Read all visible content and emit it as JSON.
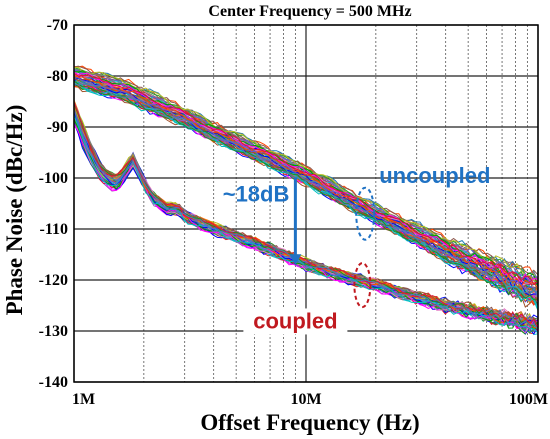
{
  "chart_data": {
    "type": "line",
    "title": "Center Frequency = 500 MHz",
    "xlabel": "Offset Frequency (Hz)",
    "ylabel": "Phase Noise (dBc/Hz)",
    "xscale": "log",
    "xlim": [
      1000000,
      100000000
    ],
    "ylim": [
      -140,
      -70
    ],
    "grid": true,
    "x_ticks": [
      {
        "value": 1000000,
        "label": "1M"
      },
      {
        "value": 10000000,
        "label": "10M"
      },
      {
        "value": 100000000,
        "label": "100M"
      }
    ],
    "y_ticks": [
      {
        "value": -70,
        "label": "-70"
      },
      {
        "value": -80,
        "label": "-80"
      },
      {
        "value": -90,
        "label": "-90"
      },
      {
        "value": -100,
        "label": "-100"
      },
      {
        "value": -110,
        "label": "-110"
      },
      {
        "value": -120,
        "label": "-120"
      },
      {
        "value": -130,
        "label": "-130"
      },
      {
        "value": -140,
        "label": "-140"
      }
    ],
    "series": [
      {
        "group": "uncoupled",
        "count": 60,
        "x": [
          1000000,
          1300000,
          1700000,
          2000000,
          3000000,
          4000000,
          5000000,
          7000000,
          10000000,
          15000000,
          20000000,
          30000000,
          40000000,
          50000000,
          70000000,
          100000000
        ],
        "y_center": [
          -80,
          -81.5,
          -83,
          -84.5,
          -88,
          -91,
          -93,
          -96,
          -99.5,
          -104,
          -107,
          -111,
          -114,
          -116,
          -119,
          -122
        ],
        "spread": [
          3.5,
          3.5,
          3.5,
          3.5,
          3,
          3,
          3,
          3,
          3,
          3,
          3,
          3.5,
          4,
          4.5,
          5,
          5.5
        ]
      },
      {
        "group": "coupled",
        "count": 60,
        "x": [
          1000000,
          1100000,
          1200000,
          1300000,
          1500000,
          1600000,
          1800000,
          2000000,
          2200000,
          2500000,
          2800000,
          3000000,
          4000000,
          5000000,
          7000000,
          10000000,
          15000000,
          20000000,
          30000000,
          40000000,
          50000000,
          70000000,
          100000000
        ],
        "y_center": [
          -87,
          -92,
          -96,
          -99,
          -101,
          -100,
          -96.5,
          -101,
          -104,
          -106,
          -106,
          -107.5,
          -110,
          -111.5,
          -114,
          -117,
          -119.5,
          -121,
          -123.5,
          -125,
          -126,
          -127.5,
          -129
        ],
        "spread": [
          4,
          4,
          3.5,
          3,
          2.5,
          2.5,
          2,
          1.5,
          1.5,
          1.5,
          1.5,
          1.5,
          1.5,
          1.5,
          1.5,
          1.5,
          1.5,
          1.5,
          1.5,
          1.5,
          1.5,
          1.5,
          1.5
        ]
      }
    ],
    "annotations": {
      "uncoupled_label": "uncoupled",
      "coupled_label": "coupled",
      "delta_label": "~18dB",
      "delta_x": 9000000,
      "delta_y_top": -99.5,
      "delta_y_bottom": -117.5,
      "uncoupled_ellipse_center": [
        18000000,
        -107
      ],
      "coupled_ellipse_center": [
        17500000,
        -121
      ],
      "uncoupled_color": "#1f72c4",
      "coupled_color": "#c0191f",
      "arrow_color": "#1f72c4"
    },
    "palette": [
      "#1f77b4",
      "#d62728",
      "#2ca02c",
      "#ff7f0e",
      "#9467bd",
      "#8c564b",
      "#e377c2",
      "#17becf",
      "#bcbd22",
      "#7f7f7f",
      "#0000ff",
      "#00a000",
      "#ff00ff",
      "#00bfbf",
      "#a0522d",
      "#ff4500",
      "#6a5acd",
      "#228b22",
      "#dc143c",
      "#4682b4"
    ]
  }
}
